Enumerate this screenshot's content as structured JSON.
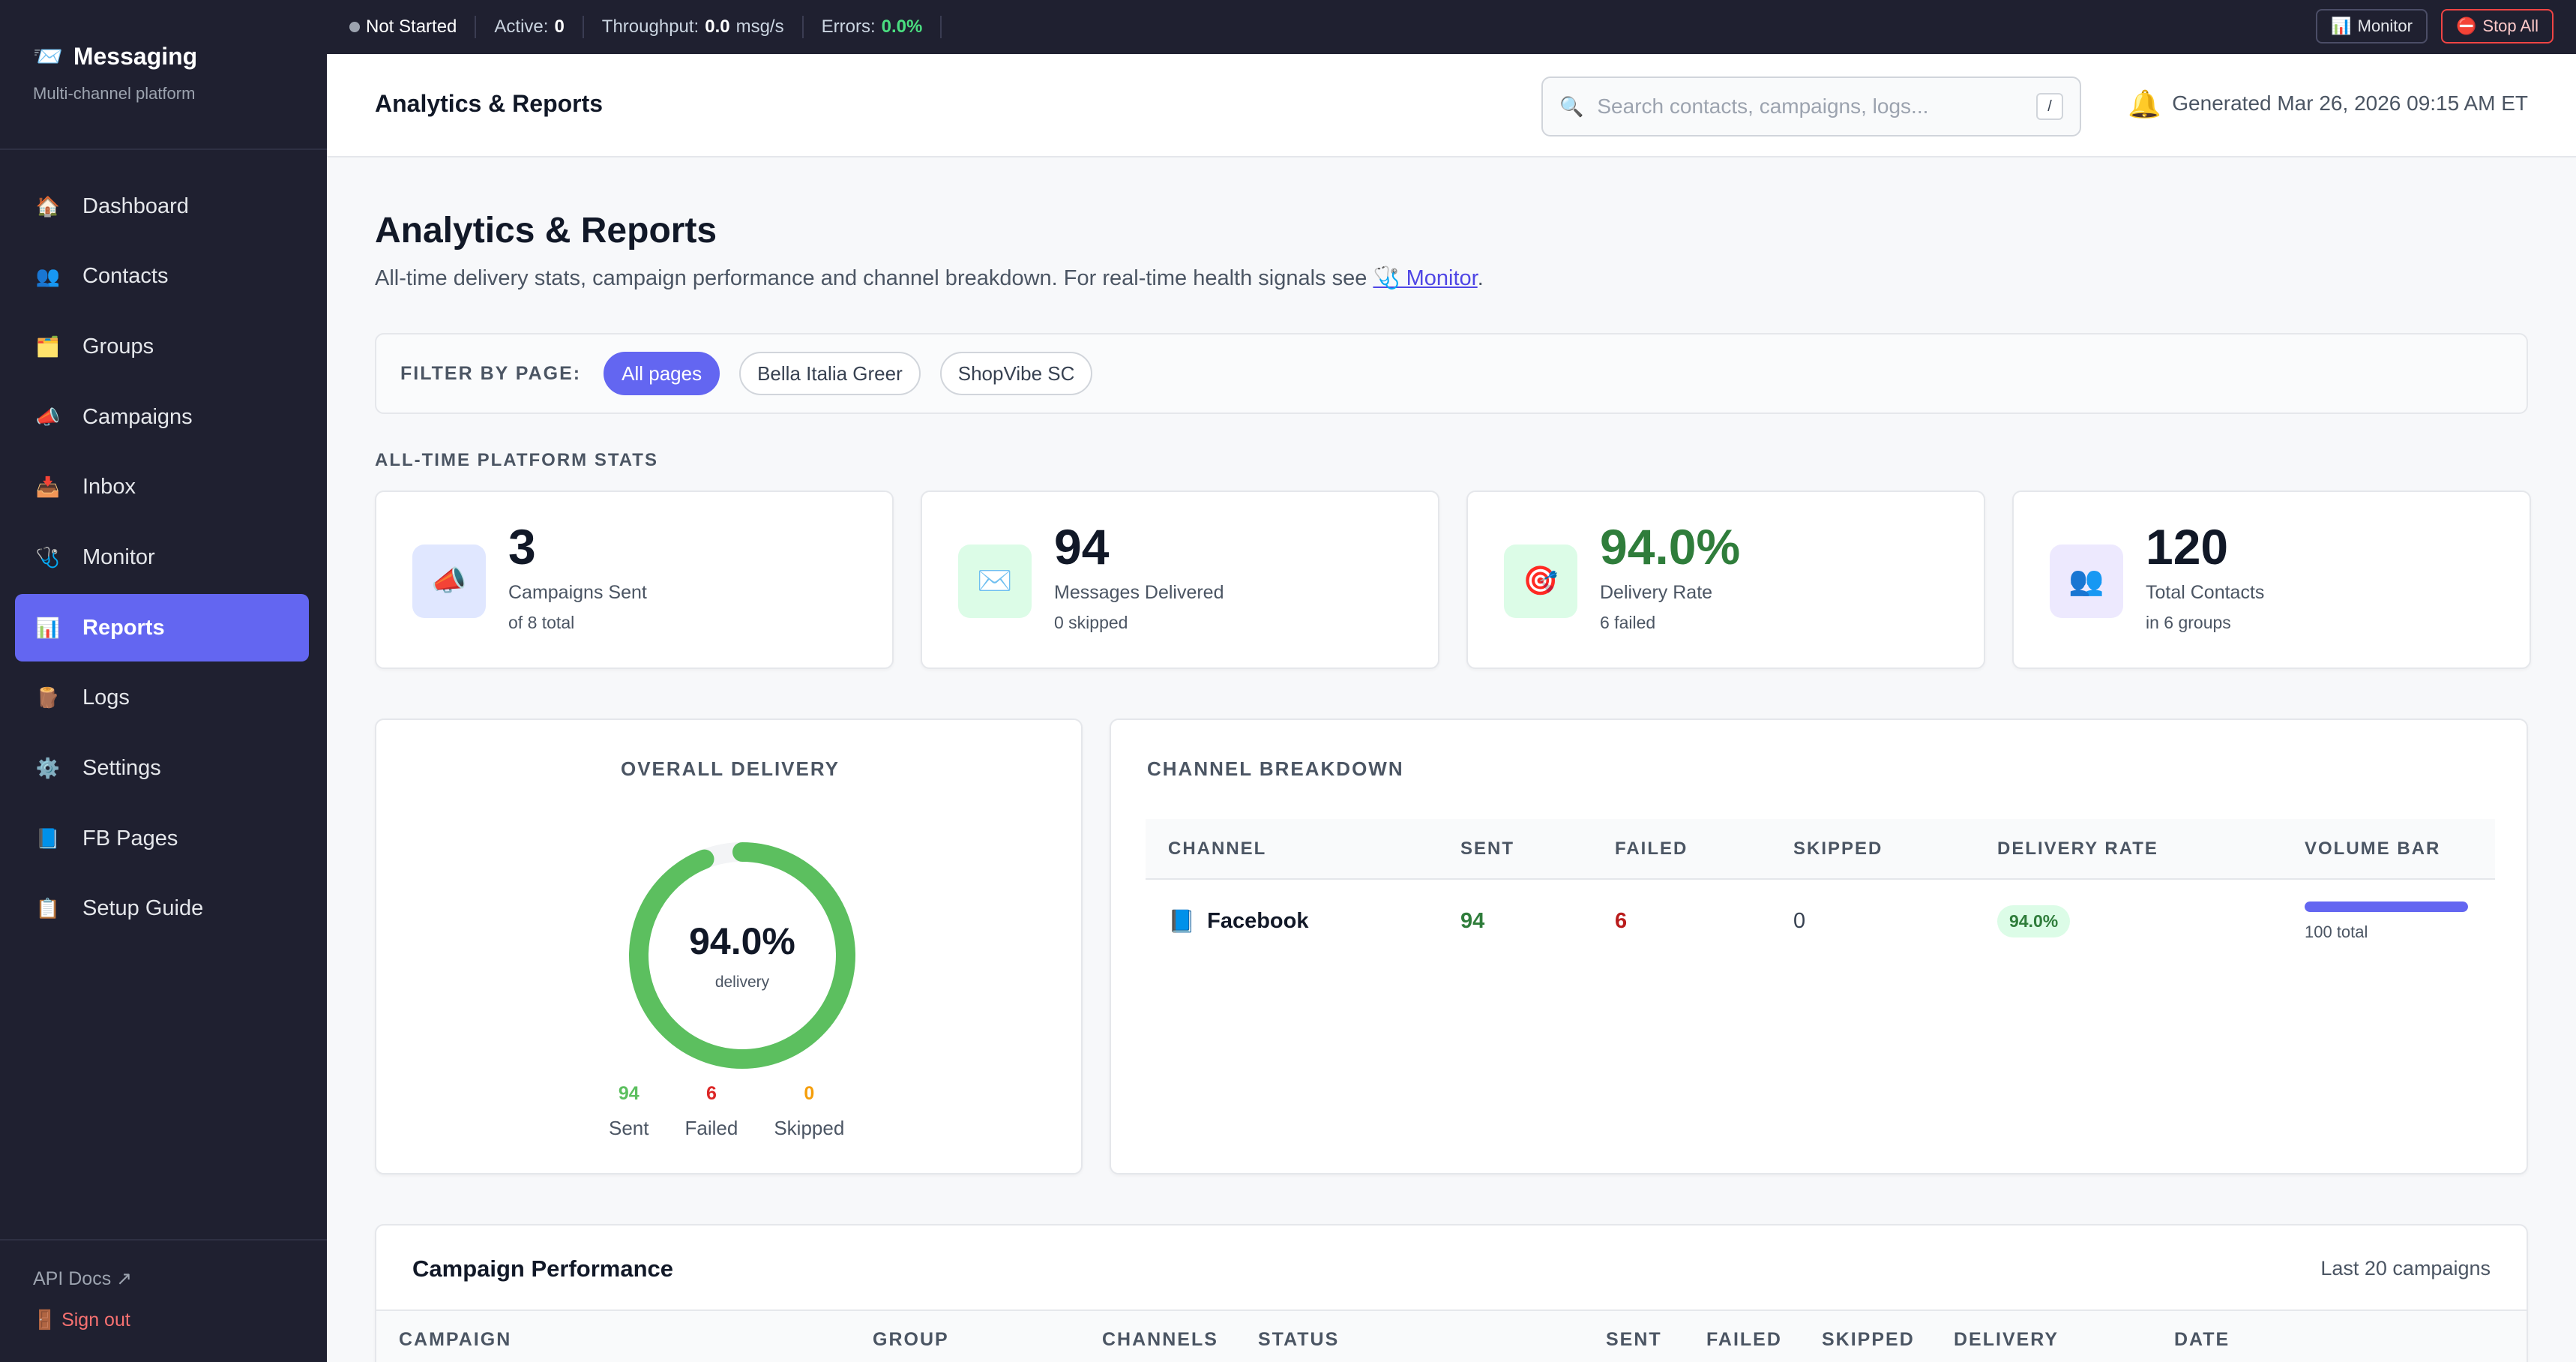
{
  "statusbar": {
    "state": "Not Started",
    "active_label": "Active:",
    "active_value": "0",
    "throughput_label": "Throughput:",
    "throughput_value": "0.0",
    "throughput_unit": "msg/s",
    "errors_label": "Errors:",
    "errors_value": "0.0%",
    "monitor_button": "Monitor",
    "stop_button": "Stop All"
  },
  "sidebar": {
    "brand": "Messaging",
    "subtitle": "Multi-channel platform",
    "items": [
      {
        "label": "Dashboard",
        "icon": "🏠"
      },
      {
        "label": "Contacts",
        "icon": "👥"
      },
      {
        "label": "Groups",
        "icon": "🗂️"
      },
      {
        "label": "Campaigns",
        "icon": "📣"
      },
      {
        "label": "Inbox",
        "icon": "📥"
      },
      {
        "label": "Monitor",
        "icon": "🩺"
      },
      {
        "label": "Reports",
        "icon": "📊"
      },
      {
        "label": "Logs",
        "icon": "🪵"
      },
      {
        "label": "Settings",
        "icon": "⚙️"
      },
      {
        "label": "FB Pages",
        "icon": "📘"
      },
      {
        "label": "Setup Guide",
        "icon": "📋"
      }
    ],
    "api_docs": "API Docs ↗",
    "sign_out": "Sign out"
  },
  "header": {
    "title": "Analytics & Reports",
    "search_placeholder": "Search contacts, campaigns, logs...",
    "search_shortcut": "/",
    "generated": "Generated Mar 26, 2026 09:15 AM ET"
  },
  "page": {
    "title": "Analytics & Reports",
    "description_prefix": "All-time delivery stats, campaign performance and channel breakdown. For real-time health signals see ",
    "description_link": "🩺 Monitor",
    "description_suffix": "."
  },
  "filter": {
    "label": "FILTER BY PAGE:",
    "options": [
      "All pages",
      "Bella Italia Greer",
      "ShopVibe SC"
    ],
    "selected": "All pages"
  },
  "stats": {
    "section_label": "ALL-TIME PLATFORM STATS",
    "cards": [
      {
        "value": "3",
        "label": "Campaigns Sent",
        "sub": "of 8 total",
        "icon": "📣",
        "bg": "#e0e7ff"
      },
      {
        "value": "94",
        "label": "Messages Delivered",
        "sub": "0 skipped",
        "icon": "✉️",
        "bg": "#dcfce7"
      },
      {
        "value": "94.0%",
        "label": "Delivery Rate",
        "sub": "6 failed",
        "icon": "🎯",
        "bg": "#dcfce7"
      },
      {
        "value": "120",
        "label": "Total Contacts",
        "sub": "in 6 groups",
        "icon": "👥",
        "bg": "#ede9fe"
      }
    ]
  },
  "overall": {
    "title": "OVERALL DELIVERY",
    "value": "94.0%",
    "label": "delivery",
    "rate": 0.94,
    "sent": "94",
    "failed": "6",
    "skipped": "0",
    "sent_label": "Sent",
    "failed_label": "Failed",
    "skipped_label": "Skipped",
    "colors": {
      "sent": "#5cbf5f",
      "failed": "#dc2626",
      "skipped": "#f59e0b",
      "track": "#f3f4f6"
    }
  },
  "channels": {
    "title": "CHANNEL BREAKDOWN",
    "columns": [
      "CHANNEL",
      "SENT",
      "FAILED",
      "SKIPPED",
      "DELIVERY RATE",
      "VOLUME BAR"
    ],
    "rows": [
      {
        "icon": "📘",
        "name": "Facebook",
        "sent": "94",
        "failed": "6",
        "skipped": "0",
        "rate": "94.0%",
        "volume_fraction": 1.0,
        "volume_label": "100 total"
      }
    ]
  },
  "performance": {
    "title": "Campaign Performance",
    "subtitle": "Last 20 campaigns",
    "columns": [
      "CAMPAIGN",
      "GROUP",
      "CHANNELS",
      "STATUS",
      "SENT",
      "FAILED",
      "SKIPPED",
      "DELIVERY",
      "DATE"
    ]
  }
}
